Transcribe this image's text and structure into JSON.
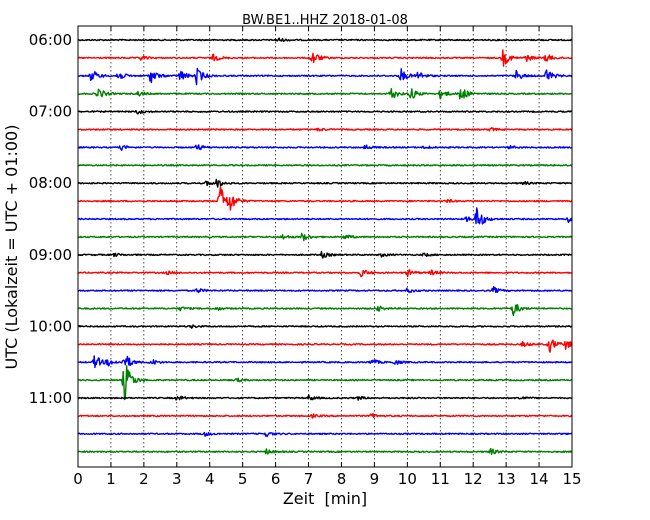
{
  "chart_data": {
    "type": "line",
    "title": "BW.BE1..HHZ 2018-01-08",
    "xlabel": "Zeit  [min]",
    "ylabel": "UTC (Lokalzeit = UTC + 01:00)",
    "xlim": [
      0,
      15
    ],
    "x_ticks": [
      "0",
      "1",
      "2",
      "3",
      "4",
      "5",
      "6",
      "7",
      "8",
      "9",
      "10",
      "11",
      "12",
      "13",
      "14",
      "15"
    ],
    "y_ticks": [
      {
        "label": "06:00",
        "row": 0
      },
      {
        "label": "07:00",
        "row": 4
      },
      {
        "label": "08:00",
        "row": 8
      },
      {
        "label": "09:00",
        "row": 12
      },
      {
        "label": "10:00",
        "row": 16
      },
      {
        "label": "11:00",
        "row": 20
      }
    ],
    "grid": "vertical-dotted",
    "series_colors": [
      "#000000",
      "#ff0000",
      "#0000ff",
      "#008000"
    ],
    "traces": [
      {
        "start": "06:00",
        "events": [
          [
            6.05,
            0.3
          ]
        ]
      },
      {
        "start": "06:15",
        "events": [
          [
            1.9,
            0.3
          ],
          [
            4.1,
            0.4
          ],
          [
            7.1,
            0.9
          ],
          [
            12.9,
            1.0
          ],
          [
            13.6,
            0.4
          ],
          [
            14.2,
            0.5
          ]
        ]
      },
      {
        "start": "06:30",
        "events": [
          [
            0.4,
            0.8
          ],
          [
            1.2,
            0.6
          ],
          [
            2.2,
            0.9
          ],
          [
            3.1,
            0.7
          ],
          [
            3.6,
            1.0
          ],
          [
            9.8,
            0.8
          ],
          [
            10.3,
            0.6
          ],
          [
            13.3,
            0.6
          ],
          [
            14.2,
            0.9
          ]
        ]
      },
      {
        "start": "06:45",
        "events": [
          [
            0.6,
            0.7
          ],
          [
            1.8,
            0.3
          ],
          [
            9.5,
            0.7
          ],
          [
            10.1,
            0.7
          ],
          [
            11.0,
            0.6
          ],
          [
            11.6,
            1.0
          ]
        ]
      },
      {
        "start": "07:00",
        "events": [
          [
            1.8,
            0.3
          ]
        ]
      },
      {
        "start": "07:15",
        "events": [
          [
            7.3,
            0.2
          ],
          [
            12.5,
            0.2
          ]
        ]
      },
      {
        "start": "07:30",
        "events": [
          [
            1.3,
            0.3
          ],
          [
            3.6,
            0.4
          ],
          [
            8.7,
            0.3
          ],
          [
            10.5,
            0.2
          ],
          [
            13.1,
            0.2
          ]
        ]
      },
      {
        "start": "07:45",
        "events": []
      },
      {
        "start": "08:00",
        "events": [
          [
            3.9,
            0.3
          ],
          [
            4.2,
            0.5
          ],
          [
            13.5,
            0.2
          ]
        ]
      },
      {
        "start": "08:15",
        "events": [
          [
            4.3,
            2.2
          ],
          [
            4.6,
            1.0
          ],
          [
            11.2,
            0.2
          ]
        ]
      },
      {
        "start": "08:30",
        "events": [
          [
            11.8,
            0.3
          ],
          [
            12.1,
            1.5
          ],
          [
            14.9,
            0.4
          ]
        ]
      },
      {
        "start": "08:45",
        "events": [
          [
            6.2,
            0.3
          ],
          [
            6.8,
            0.5
          ],
          [
            8.1,
            0.3
          ]
        ]
      },
      {
        "start": "09:00",
        "events": [
          [
            1.1,
            0.2
          ],
          [
            7.4,
            0.4
          ],
          [
            9.2,
            0.2
          ],
          [
            10.5,
            0.2
          ]
        ]
      },
      {
        "start": "09:15",
        "events": [
          [
            2.7,
            0.2
          ],
          [
            8.6,
            0.5
          ],
          [
            10.0,
            0.4
          ],
          [
            10.7,
            0.3
          ]
        ]
      },
      {
        "start": "09:30",
        "events": [
          [
            3.6,
            0.3
          ],
          [
            10.0,
            0.3
          ],
          [
            12.6,
            0.4
          ]
        ]
      },
      {
        "start": "09:45",
        "events": [
          [
            3.1,
            0.2
          ],
          [
            4.2,
            0.2
          ],
          [
            9.1,
            0.3
          ],
          [
            13.2,
            0.9
          ]
        ]
      },
      {
        "start": "10:00",
        "events": [
          [
            3.4,
            0.2
          ]
        ]
      },
      {
        "start": "10:15",
        "events": [
          [
            13.5,
            0.3
          ],
          [
            14.3,
            1.0
          ],
          [
            14.8,
            0.5
          ]
        ]
      },
      {
        "start": "10:30",
        "events": [
          [
            0.5,
            0.9
          ],
          [
            0.9,
            0.4
          ],
          [
            1.4,
            1.1
          ],
          [
            2.2,
            0.4
          ],
          [
            8.9,
            0.4
          ],
          [
            9.6,
            0.3
          ]
        ]
      },
      {
        "start": "10:45",
        "events": [
          [
            1.4,
            2.6
          ],
          [
            4.8,
            0.2
          ]
        ]
      },
      {
        "start": "11:00",
        "events": [
          [
            3.0,
            0.3
          ],
          [
            7.0,
            0.3
          ],
          [
            8.5,
            0.2
          ],
          [
            13.4,
            0.2
          ]
        ]
      },
      {
        "start": "11:15",
        "events": [
          [
            7.1,
            0.2
          ],
          [
            8.9,
            0.3
          ]
        ]
      },
      {
        "start": "11:30",
        "events": [
          [
            3.8,
            0.3
          ],
          [
            5.7,
            0.3
          ]
        ]
      },
      {
        "start": "11:45",
        "events": [
          [
            5.7,
            0.3
          ],
          [
            12.5,
            0.4
          ]
        ]
      }
    ]
  }
}
